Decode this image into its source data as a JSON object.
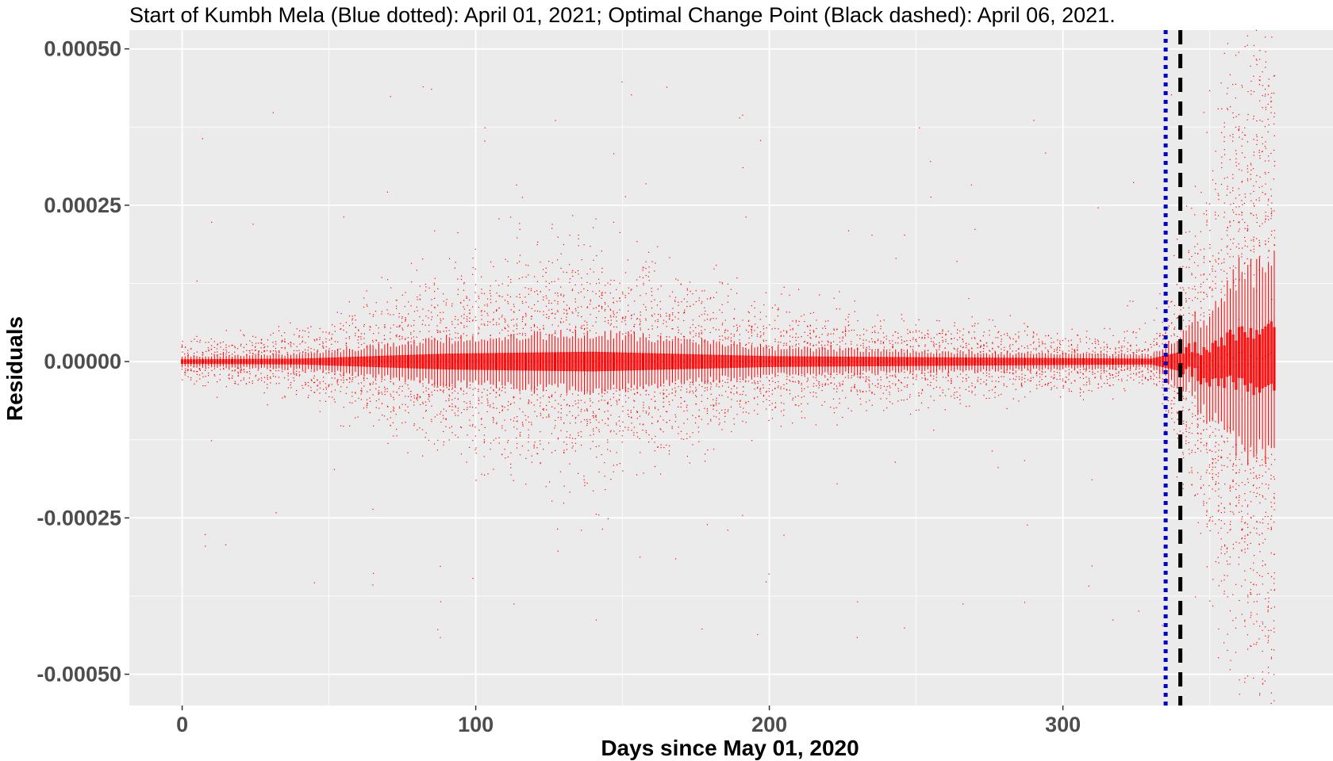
{
  "chart_data": {
    "type": "box",
    "title": "Start of Kumbh Mela (Blue dotted): April 01, 2021; Optimal Change Point (Black dashed): April 06, 2021.",
    "xlabel": "Days since May 01, 2020",
    "ylabel": "Residuals",
    "xlim": [
      -18,
      392
    ],
    "ylim": [
      -0.00055,
      0.00053
    ],
    "x_ticks": [
      0,
      100,
      200,
      300
    ],
    "x_tick_labels": [
      "0",
      "100",
      "200",
      "300"
    ],
    "y_ticks": [
      -0.0005,
      -0.00025,
      0,
      0.00025,
      0.0005
    ],
    "y_tick_labels": [
      "-0.00050",
      "-0.00025",
      "0.00000",
      "0.00025",
      "0.00050"
    ],
    "grid": true,
    "panel_background": "#ebebeb",
    "box_color": "#ff0000",
    "vlines": [
      {
        "x": 335,
        "label": "Start of Kumbh Mela",
        "date": "April 01, 2021",
        "style": "dotted",
        "color": "#0000cc"
      },
      {
        "x": 340,
        "label": "Optimal Change Point",
        "date": "April 06, 2021",
        "style": "dashed",
        "color": "#000000"
      }
    ],
    "days": {
      "start": 0,
      "end": 372
    },
    "spread_profile": [
      {
        "day": 0,
        "q1": -3e-06,
        "q3": 3e-06,
        "whisker": 8e-06
      },
      {
        "day": 40,
        "q1": -4e-06,
        "q3": 4e-06,
        "whisker": 1.2e-05
      },
      {
        "day": 90,
        "q1": -1.2e-05,
        "q3": 1.2e-05,
        "whisker": 3.5e-05
      },
      {
        "day": 140,
        "q1": -1.5e-05,
        "q3": 1.5e-05,
        "whisker": 4.5e-05
      },
      {
        "day": 200,
        "q1": -8e-06,
        "q3": 8e-06,
        "whisker": 2.2e-05
      },
      {
        "day": 260,
        "q1": -6e-06,
        "q3": 6e-06,
        "whisker": 1.5e-05
      },
      {
        "day": 330,
        "q1": -4e-06,
        "q3": 4e-06,
        "whisker": 1e-05
      },
      {
        "day": 345,
        "q1": -2e-05,
        "q3": 2e-05,
        "whisker": 6e-05
      },
      {
        "day": 360,
        "q1": -4e-05,
        "q3": 4e-05,
        "whisker": 0.00013
      },
      {
        "day": 372,
        "q1": -5e-05,
        "q3": 5e-05,
        "whisker": 0.00016
      }
    ]
  }
}
